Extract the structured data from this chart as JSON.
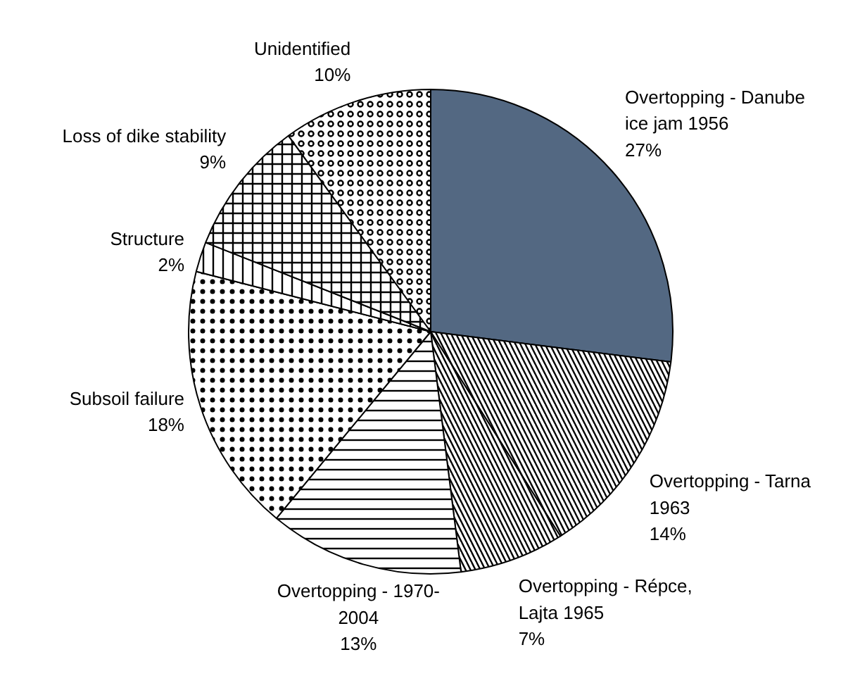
{
  "chart_data": {
    "type": "pie",
    "categories": [
      "Overtopping - Danube\nice jam 1956",
      "Overtopping - Tarna\n1963",
      "Overtopping - Répce,\nLajta 1965",
      "Overtopping - 1970-\n2004",
      "Subsoil failure",
      "Structure",
      "Loss of dike stability",
      "Unidentified"
    ],
    "values": [
      27,
      14,
      7,
      13,
      18,
      2,
      9,
      10
    ],
    "value_labels": [
      "27%",
      "14%",
      "7%",
      "13%",
      "18%",
      "2%",
      "9%",
      "10%"
    ],
    "colors": [
      "#536882",
      "#ffffff",
      "#ffffff",
      "#ffffff",
      "#ffffff",
      "#ffffff",
      "#ffffff",
      "#ffffff"
    ]
  }
}
